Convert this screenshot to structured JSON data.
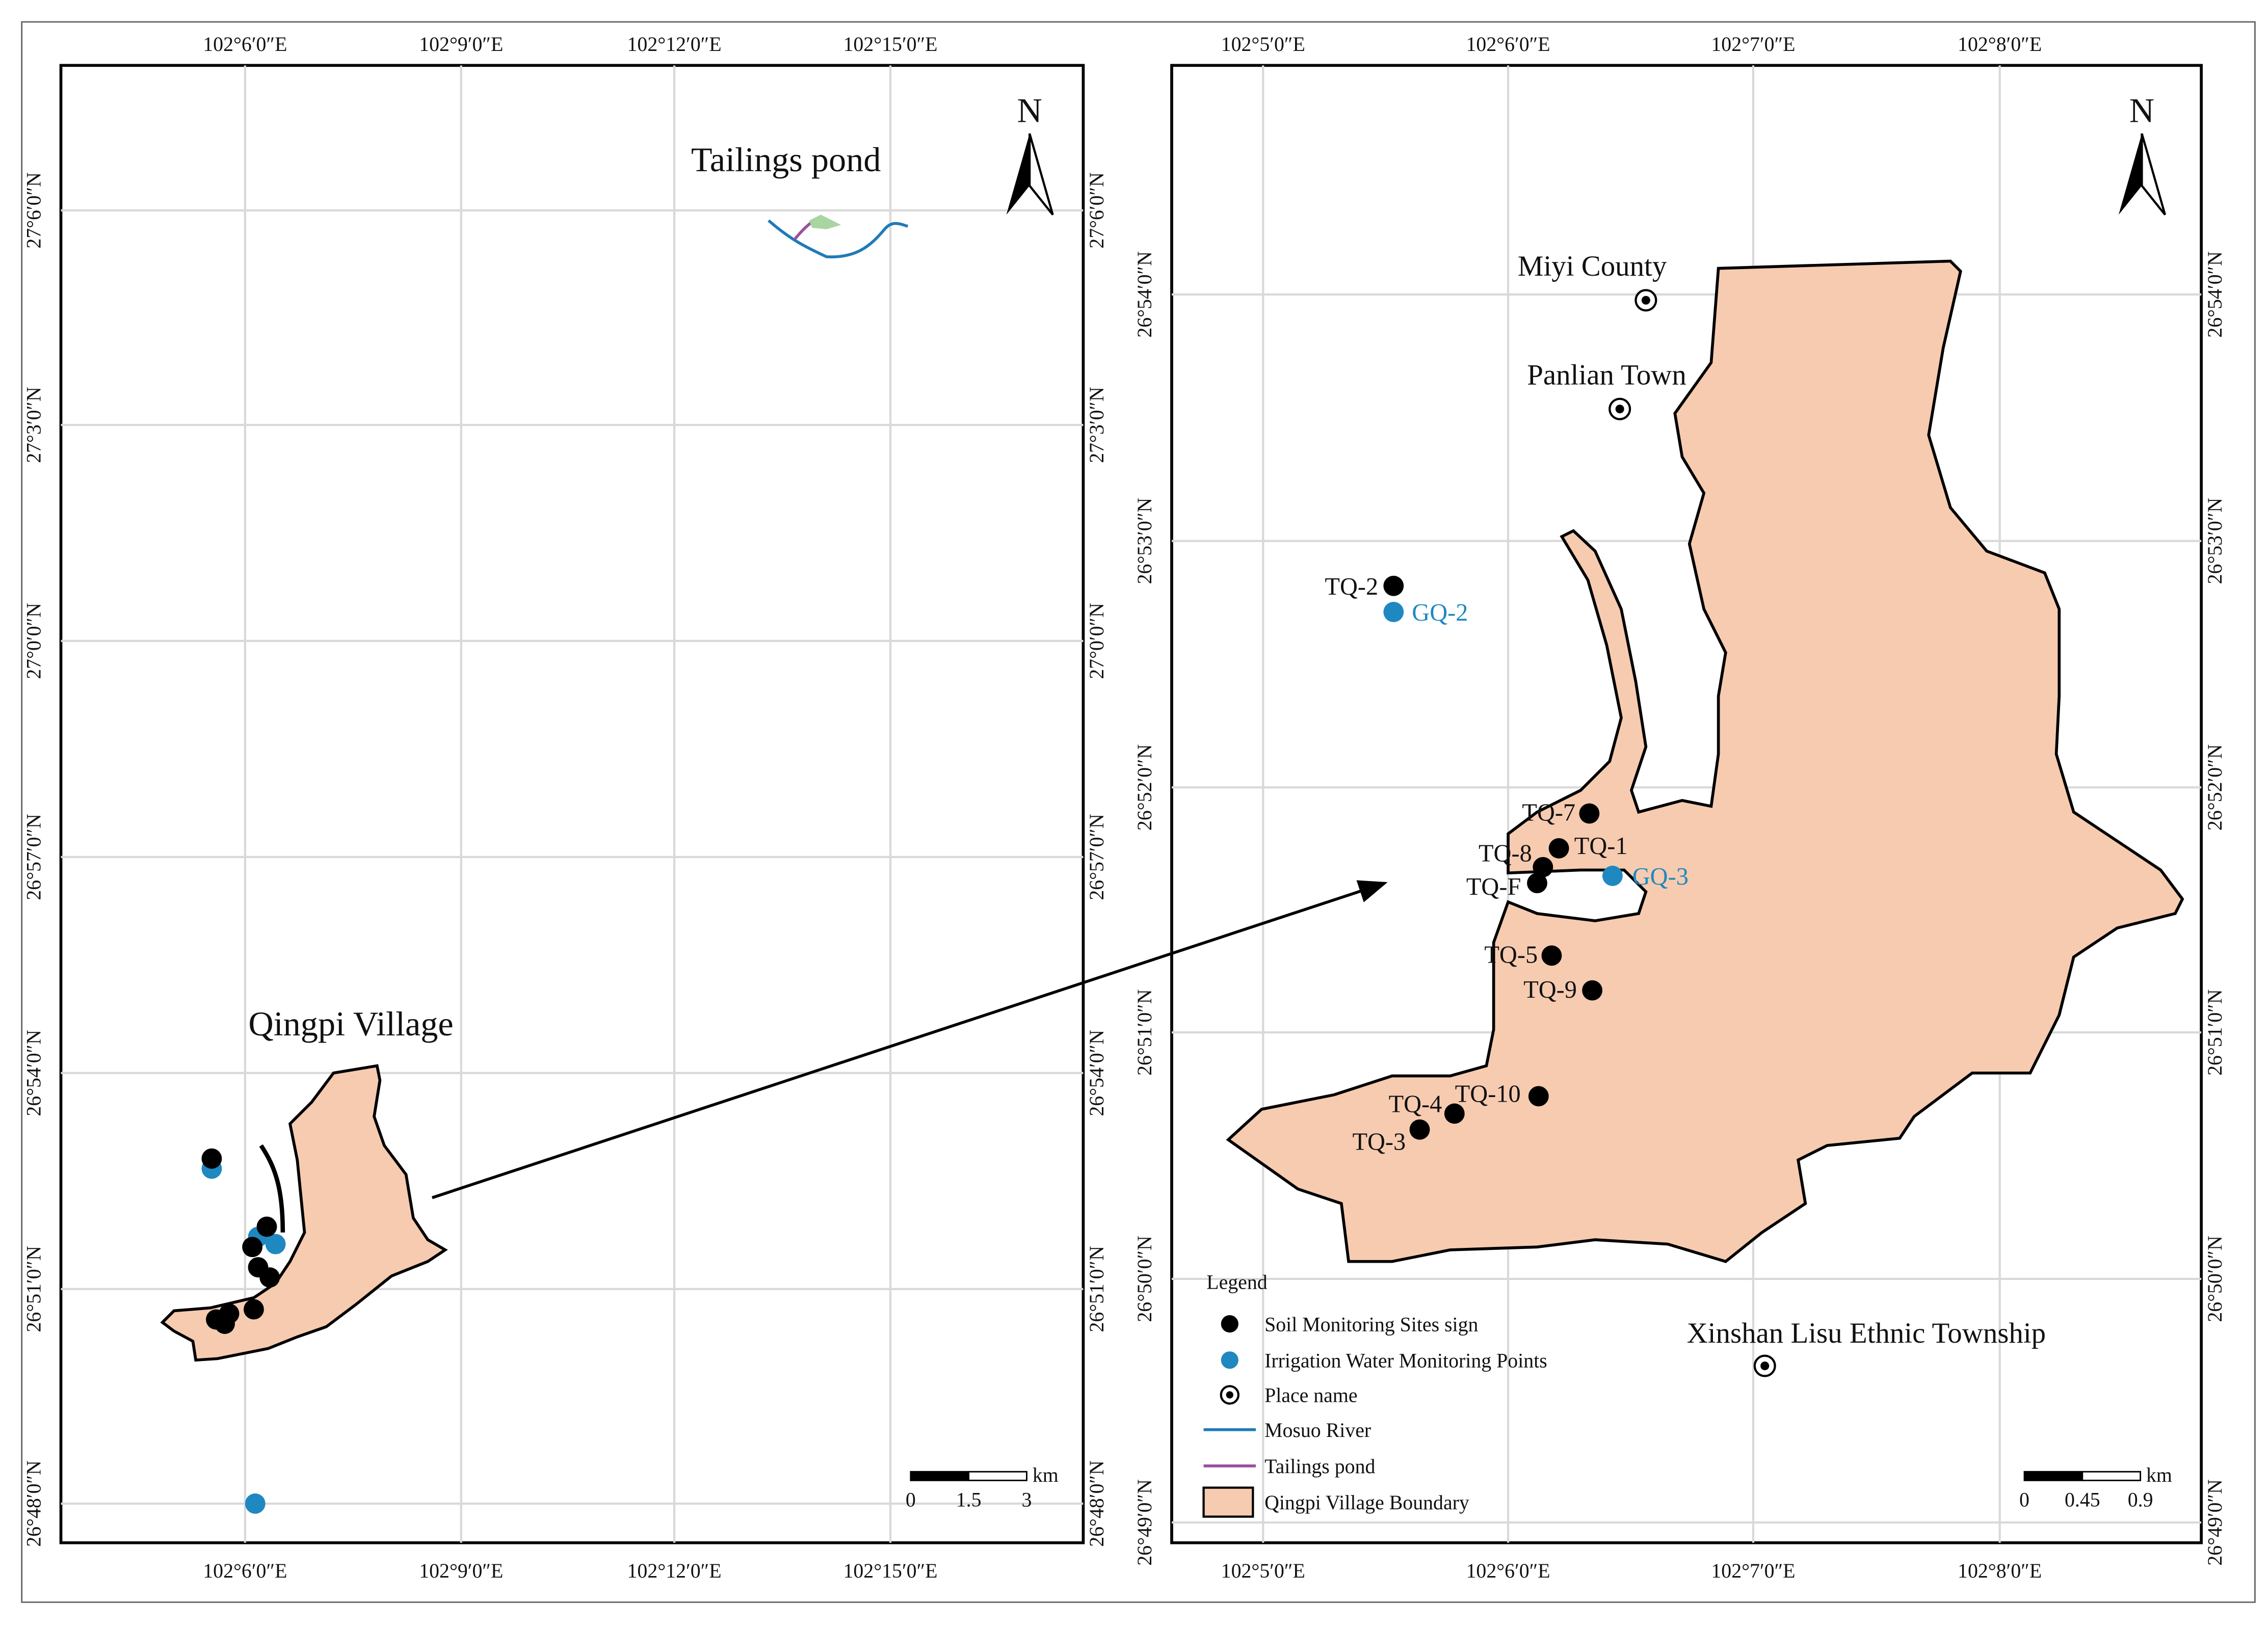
{
  "left_map": {
    "lon_labels": [
      "102°6′0″E",
      "102°9′0″E",
      "102°12′0″E",
      "102°15′0″E"
    ],
    "lat_labels": [
      "27°6′0″N",
      "27°3′0″N",
      "27°0′0″N",
      "26°57′0″N",
      "26°54′0″N",
      "26°51′0″N",
      "26°48′0″N"
    ],
    "north": "N",
    "tailings_label": "Tailings pond",
    "village_label": "Qingpi Village",
    "scale": {
      "unit": "km",
      "ticks": [
        "0",
        "1.5",
        "3"
      ]
    }
  },
  "right_map": {
    "lon_labels": [
      "102°5′0″E",
      "102°6′0″E",
      "102°7′0″E",
      "102°8′0″E"
    ],
    "lat_labels": [
      "26°54′0″N",
      "26°53′0″N",
      "26°52′0″N",
      "26°51′0″N",
      "26°50′0″N",
      "26°49′0″N"
    ],
    "north": "N",
    "places": [
      "Miyi County",
      "Panlian Town",
      "Xinshan Lisu Ethnic Township"
    ],
    "soil_sites": [
      "TQ-7",
      "TQ-1",
      "TQ-8",
      "TQ-F",
      "TQ-5",
      "TQ-9",
      "TQ-10",
      "TQ-4",
      "TQ-3",
      "TQ-2"
    ],
    "water_sites": [
      "GQ-3",
      "GQ-2"
    ],
    "scale": {
      "unit": "km",
      "ticks": [
        "0",
        "0.45",
        "0.9"
      ]
    }
  },
  "legend": {
    "title": "Legend",
    "items": [
      "Soil Monitoring Sites sign",
      "Irrigation Water Monitoring Points",
      "Place name",
      "Mosuo River",
      "Tailings pond",
      "Qingpi Village Boundary"
    ]
  }
}
